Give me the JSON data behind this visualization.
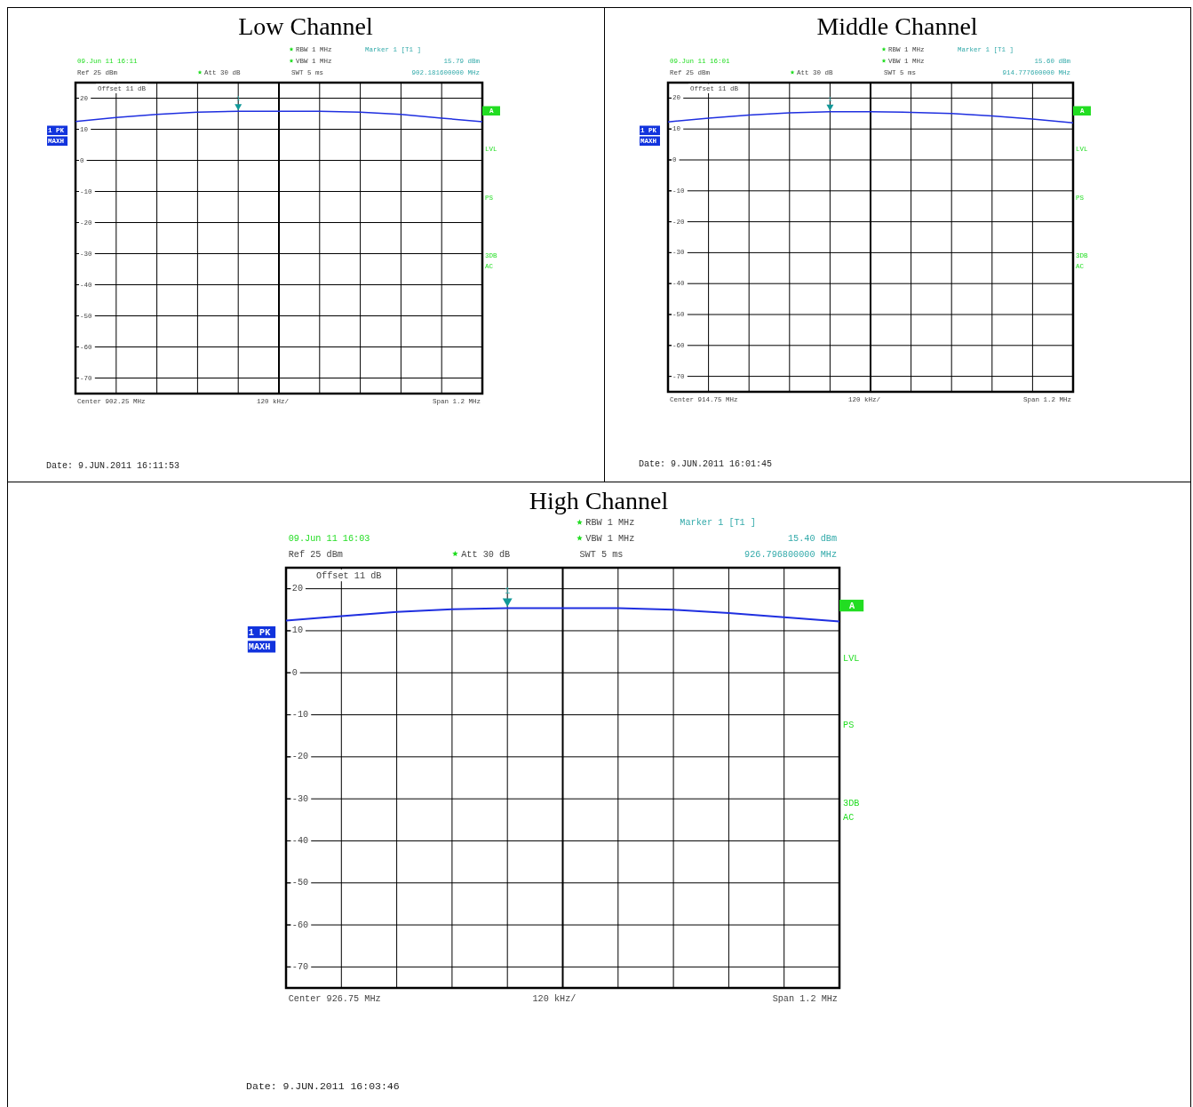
{
  "chart_data": [
    {
      "type": "line",
      "title": "Low Channel",
      "categories": [
        null,
        null,
        null,
        null,
        null,
        null,
        null,
        null,
        null,
        null,
        null
      ],
      "series": [
        {
          "color": "#1f2fe0",
          "values": [
            12.5,
            13.8,
            14.8,
            15.5,
            15.8,
            15.8,
            15.8,
            15.5,
            14.8,
            13.6,
            12.4
          ]
        }
      ],
      "ylim": [
        -75,
        25
      ],
      "yticks": [
        20,
        10,
        0,
        -10,
        -20,
        -30,
        -40,
        -50,
        -60,
        -70
      ],
      "grid": true,
      "marker": "none",
      "line_style": "solid",
      "annotations": [
        "09.Jun 11 16:11",
        "Ref 25 dBm",
        "Att 30 dB",
        "RBW 1 MHz",
        "VBW 1 MHz",
        "SWT 5 ms",
        "Marker 1 [T1 ]",
        "15.79 dBm",
        "902.181600000 MHz",
        "Offset 11 dB",
        "1 PK",
        "MAXH",
        "A",
        "LVL",
        "PS",
        "3DB",
        "AC",
        "Center 902.25 MHz",
        "120 kHz/",
        "Span 1.2 MHz",
        "Date: 9.JUN.2011 16:11:53",
        {
          "text": "1",
          "y": 15.79
        }
      ]
    },
    {
      "type": "line",
      "title": "Middle Channel",
      "categories": [
        null,
        null,
        null,
        null,
        null,
        null,
        null,
        null,
        null,
        null,
        null
      ],
      "series": [
        {
          "color": "#1f2fe0",
          "values": [
            12.3,
            13.5,
            14.5,
            15.2,
            15.6,
            15.6,
            15.4,
            15.0,
            14.2,
            13.2,
            12.0
          ]
        }
      ],
      "ylim": [
        -75,
        25
      ],
      "yticks": [
        20,
        10,
        0,
        -10,
        -20,
        -30,
        -40,
        -50,
        -60,
        -70
      ],
      "grid": true,
      "marker": "none",
      "line_style": "solid",
      "annotations": [
        "09.Jun 11 16:01",
        "Ref 25 dBm",
        "Att 30 dB",
        "RBW 1 MHz",
        "VBW 1 MHz",
        "SWT 5 ms",
        "Marker 1 [T1 ]",
        "15.60 dBm",
        "914.777600000 MHz",
        "Offset 11 dB",
        "1 PK",
        "MAXH",
        "A",
        "LVL",
        "PS",
        "3DB",
        "AC",
        "Center 914.75 MHz",
        "120 kHz/",
        "Span 1.2 MHz",
        "Date: 9.JUN.2011 16:01:45",
        {
          "text": "1",
          "y": 15.6
        }
      ]
    },
    {
      "type": "line",
      "title": "High Channel",
      "categories": [
        null,
        null,
        null,
        null,
        null,
        null,
        null,
        null,
        null,
        null,
        null
      ],
      "series": [
        {
          "color": "#1f2fe0",
          "values": [
            12.4,
            13.5,
            14.5,
            15.1,
            15.4,
            15.4,
            15.4,
            15.0,
            14.2,
            13.2,
            12.2
          ]
        }
      ],
      "ylim": [
        -75,
        25
      ],
      "yticks": [
        20,
        10,
        0,
        -10,
        -20,
        -30,
        -40,
        -50,
        -60,
        -70
      ],
      "grid": true,
      "marker": "none",
      "line_style": "solid",
      "annotations": [
        "09.Jun 11 16:03",
        "Ref 25 dBm",
        "Att 30 dB",
        "RBW 1 MHz",
        "VBW 1 MHz",
        "SWT 5 ms",
        "Marker 1 [T1 ]",
        "15.40 dBm",
        "926.796800000 MHz",
        "Offset 11 dB",
        "1 PK",
        "MAXH",
        "A",
        "LVL",
        "PS",
        "3DB",
        "AC",
        "Center 926.75 MHz",
        "120 kHz/",
        "Span 1.2 MHz",
        "Date: 9.JUN.2011 16:03:46",
        {
          "text": "1",
          "y": 15.4
        }
      ]
    }
  ]
}
